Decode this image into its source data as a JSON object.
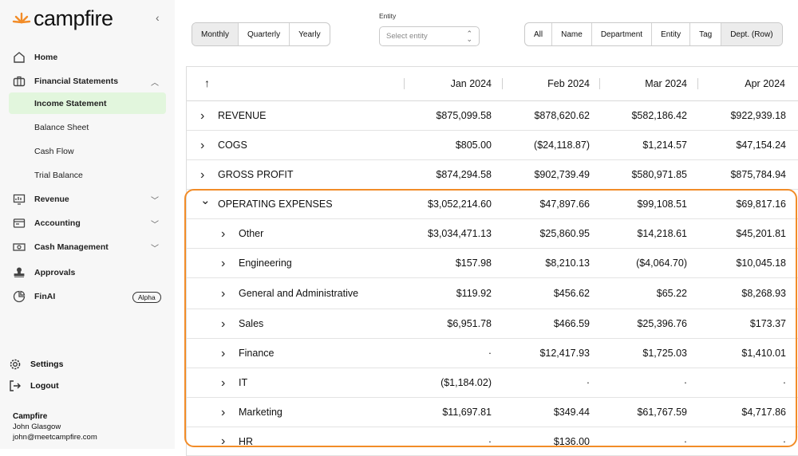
{
  "brand": {
    "name": "campfire"
  },
  "sidebar": {
    "items": [
      {
        "label": "Home",
        "icon": "home-icon"
      },
      {
        "label": "Financial Statements",
        "icon": "briefcase-icon",
        "expanded": true
      },
      {
        "label": "Revenue",
        "icon": "revenue-icon"
      },
      {
        "label": "Accounting",
        "icon": "accounting-icon"
      },
      {
        "label": "Cash Management",
        "icon": "cash-icon"
      },
      {
        "label": "Approvals",
        "icon": "stamp-icon"
      },
      {
        "label": "FinAI",
        "icon": "finai-icon",
        "badge": "Alpha"
      }
    ],
    "sub_items": [
      "Income Statement",
      "Balance Sheet",
      "Cash Flow",
      "Trial Balance"
    ],
    "settings": "Settings",
    "logout": "Logout"
  },
  "user": {
    "org": "Campfire",
    "name": "John Glasgow",
    "email": "john@meetcampfire.com"
  },
  "period_tabs": [
    "Monthly",
    "Quarterly",
    "Yearly"
  ],
  "entity": {
    "label": "Entity",
    "placeholder": "Select entity"
  },
  "group_tabs": [
    "All",
    "Name",
    "Department",
    "Entity",
    "Tag",
    "Dept. (Row)"
  ],
  "table": {
    "columns": [
      "Jan 2024",
      "Feb 2024",
      "Mar 2024",
      "Apr 2024"
    ],
    "rows": [
      {
        "name": "REVENUE",
        "values": [
          "$875,099.58",
          "$878,620.62",
          "$582,186.42",
          "$922,939.18"
        ]
      },
      {
        "name": "COGS",
        "values": [
          "$805.00",
          "($24,118.87)",
          "$1,214.57",
          "$47,154.24"
        ]
      },
      {
        "name": "GROSS PROFIT",
        "values": [
          "$874,294.58",
          "$902,739.49",
          "$580,971.85",
          "$875,784.94"
        ]
      },
      {
        "name": "OPERATING EXPENSES",
        "values": [
          "$3,052,214.60",
          "$47,897.66",
          "$99,108.51",
          "$69,817.16"
        ]
      },
      {
        "name": "Other",
        "values": [
          "$3,034,471.13",
          "$25,860.95",
          "$14,218.61",
          "$45,201.81"
        ]
      },
      {
        "name": "Engineering",
        "values": [
          "$157.98",
          "$8,210.13",
          "($4,064.70)",
          "$10,045.18"
        ]
      },
      {
        "name": "General and Administrative",
        "values": [
          "$119.92",
          "$456.62",
          "$65.22",
          "$8,268.93"
        ]
      },
      {
        "name": "Sales",
        "values": [
          "$6,951.78",
          "$466.59",
          "$25,396.76",
          "$173.37"
        ]
      },
      {
        "name": "Finance",
        "values": [
          "·",
          "$12,417.93",
          "$1,725.03",
          "$1,410.01"
        ]
      },
      {
        "name": "IT",
        "values": [
          "($1,184.02)",
          "·",
          "·",
          "·"
        ]
      },
      {
        "name": "Marketing",
        "values": [
          "$11,697.81",
          "$349.44",
          "$61,767.59",
          "$4,717.86"
        ]
      },
      {
        "name": "HR",
        "values": [
          "·",
          "$136.00",
          "·",
          "·"
        ]
      }
    ]
  },
  "colors": {
    "accent": "#f28c28",
    "active_bg": "#e2f6dd"
  }
}
